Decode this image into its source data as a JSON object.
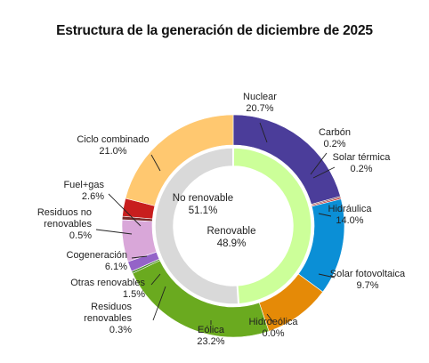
{
  "chart_data": {
    "type": "pie",
    "title": "Estructura de la generación de diciembre de 2025",
    "inner_ring": [
      {
        "name": "No renovable",
        "value": 51.1,
        "value_label": "51.1%",
        "color": "#d9d9d9"
      },
      {
        "name": "Renovable",
        "value": 48.9,
        "value_label": "48.9%",
        "color": "#ccff99"
      }
    ],
    "outer_ring": [
      {
        "name": "Nuclear",
        "value": 20.7,
        "value_label": "20.7%",
        "color": "#4b3d9a"
      },
      {
        "name": "Carbón",
        "value": 0.2,
        "value_label": "0.2%",
        "color": "#7b3f3f"
      },
      {
        "name": "Solar térmica",
        "value": 0.2,
        "value_label": "0.2%",
        "color": "#c00000"
      },
      {
        "name": "Hidráulica",
        "value": 14.0,
        "value_label": "14.0%",
        "color": "#0b8fd6"
      },
      {
        "name": "Solar fotovoltaica",
        "value": 9.7,
        "value_label": "9.7%",
        "color": "#e58a07"
      },
      {
        "name": "Hidroeólica",
        "value": 0.0,
        "value_label": "0.0%",
        "color": "#3a7fc4"
      },
      {
        "name": "Eólica",
        "value": 23.2,
        "value_label": "23.2%",
        "color": "#6aaa1f"
      },
      {
        "name": "Residuos renovables",
        "value": 0.3,
        "value_label": "0.3%",
        "color": "#4a8f2a"
      },
      {
        "name": "Otras renovables",
        "value": 1.5,
        "value_label": "1.5%",
        "color": "#9463c8"
      },
      {
        "name": "Cogeneración",
        "value": 6.1,
        "value_label": "6.1%",
        "color": "#d9a7d9"
      },
      {
        "name": "Residuos no renovables",
        "value": 0.5,
        "value_label": "0.5%",
        "color": "#7a2b2b"
      },
      {
        "name": "Fuel+gas",
        "value": 2.6,
        "value_label": "2.6%",
        "color": "#c81e1e"
      },
      {
        "name": "Ciclo combinado",
        "value": 21.0,
        "value_label": "21.0%",
        "color": "#ffc870"
      }
    ]
  }
}
